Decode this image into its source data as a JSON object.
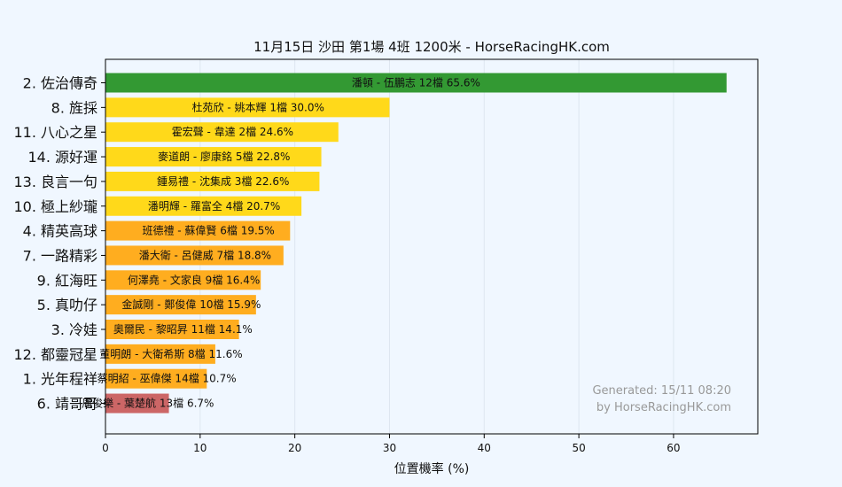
{
  "chart_data": {
    "type": "bar",
    "orientation": "horizontal",
    "title": "11月15日  沙田  第1場  4班  1200米 - HorseRacingHK.com",
    "xlabel": "位置機率 (%)",
    "ylabel": "",
    "xlim": [
      0,
      68.9
    ],
    "xticks": [
      0,
      10,
      20,
      30,
      40,
      50,
      60
    ],
    "grid": true,
    "categories": [
      "2. 佐治傳奇",
      "8. 旌採",
      "11. 八心之星",
      "14. 源好運",
      "13. 良言一句",
      "10. 極上紗瓏",
      "4. 精英高球",
      "7. 一路精彩",
      "9. 紅海旺",
      "5. 真叻仔",
      "3. 冷娃",
      "12. 都靈冠星",
      "1. 光年程祥",
      "6. 靖哥哥"
    ],
    "values": [
      65.6,
      30.0,
      24.6,
      22.8,
      22.6,
      20.7,
      19.5,
      18.8,
      16.4,
      15.9,
      14.1,
      11.6,
      10.7,
      6.7
    ],
    "bar_labels": [
      "潘頓 - 伍鵬志 12檔  65.6%",
      "杜苑欣 - 姚本輝 1檔  30.0%",
      "霍宏聲 - 韋達 2檔  24.6%",
      "麥道朗 - 廖康銘 5檔  22.8%",
      "鍾易禮 - 沈集成 3檔  22.6%",
      "潘明輝 - 羅富全 4檔  20.7%",
      "班德禮 - 蘇偉賢 6檔  19.5%",
      "潘大衛 - 呂健威 7檔  18.8%",
      "何澤堯 - 文家良 9檔  16.4%",
      "金誠剛 - 鄭俊偉 10檔  15.9%",
      "奧爾民 - 黎昭昇 11檔  14.1%",
      "董明朗 - 大衛希斯 8檔  11.6%",
      "蔡明紹 - 巫偉傑 14檔  10.7%",
      "周俊樂 - 葉楚航 13檔  6.7%"
    ],
    "bar_colors": [
      "#339933",
      "#ffd91a",
      "#ffd91a",
      "#ffd91a",
      "#ffd91a",
      "#ffd91a",
      "#ffad1f",
      "#ffad1f",
      "#ffad1f",
      "#ffad1f",
      "#ffad1f",
      "#ffad1f",
      "#ffad1f",
      "#cc6666"
    ],
    "watermark": [
      "Generated: 15/11 08:20",
      "by HorseRacingHK.com"
    ]
  },
  "colors": {
    "background": "#f0f7ff",
    "plot_area": "#f0f7ff",
    "grid": "#dde6f0"
  }
}
